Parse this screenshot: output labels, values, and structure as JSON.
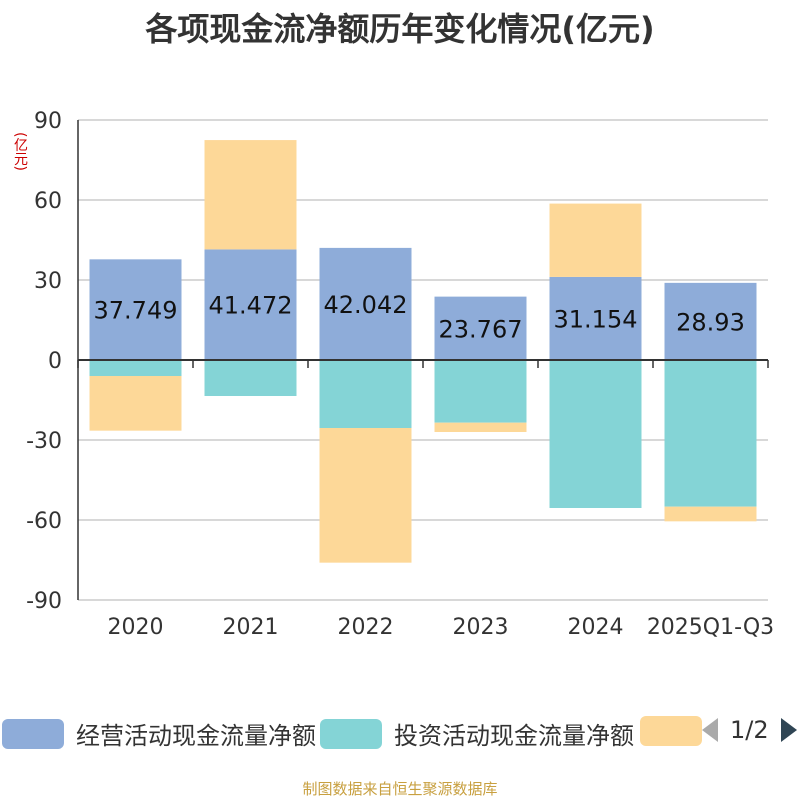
{
  "title": "各项现金流净额历年变化情况(亿元)",
  "unit_label": "(亿元)",
  "footer": "制图数据来自恒生聚源数据库",
  "legend": {
    "items": [
      {
        "label": "经营活动现金流量净额",
        "color": "#8eacd9"
      },
      {
        "label": "投资活动现金流量净额",
        "color": "#84d4d6"
      },
      {
        "label": "",
        "color": "#fdd898"
      }
    ],
    "page_text": "1/2",
    "prev_icon": "triangle-left-icon",
    "next_icon": "triangle-right-icon"
  },
  "chart_data": {
    "type": "bar",
    "stacked": true,
    "categories": [
      "2020",
      "2021",
      "2022",
      "2023",
      "2024",
      "2025Q1-Q3"
    ],
    "ylim": [
      -90,
      90
    ],
    "yticks": [
      90,
      60,
      30,
      0,
      -30,
      -60,
      -90
    ],
    "grid": true,
    "legend_position": "bottom",
    "series": [
      {
        "name": "经营活动现金流量净额",
        "color": "#8eacd9",
        "values": [
          37.749,
          41.472,
          42.042,
          23.767,
          31.154,
          28.93
        ],
        "labels": [
          "37.749",
          "41.472",
          "42.042",
          "23.767",
          "31.154",
          "28.93"
        ]
      },
      {
        "name": "投资活动现金流量净额",
        "color": "#84d4d6",
        "values": [
          -6,
          -13.5,
          -25.5,
          -23.5,
          -55.5,
          -55
        ]
      },
      {
        "name": "",
        "color": "#fdd898",
        "values": [
          -20.5,
          41,
          -50.5,
          -3.5,
          27.5,
          -5.5
        ]
      }
    ]
  }
}
